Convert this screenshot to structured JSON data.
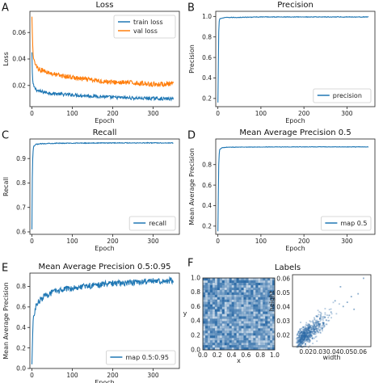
{
  "figure": {
    "width": 474,
    "height": 474
  },
  "chart_data": [
    {
      "panel": "A",
      "type": "line",
      "title": "Loss",
      "xlabel": "Epoch",
      "ylabel": "Loss",
      "xlim": [
        -5,
        365
      ],
      "ylim": [
        0.004,
        0.076
      ],
      "xticks": [
        0,
        100,
        200,
        300
      ],
      "yticks": [
        0.02,
        0.04,
        0.06
      ],
      "ytick_labels": [
        "0.02",
        "0.04",
        "0.06"
      ],
      "legend_loc": "top-right",
      "series": [
        {
          "name": "train loss",
          "color": "#1f77b4",
          "x": [
            0,
            1,
            2,
            3,
            4,
            5,
            7,
            10,
            15,
            20,
            30,
            40,
            50,
            60,
            80,
            100,
            120,
            150,
            180,
            200,
            250,
            300,
            350
          ],
          "y": [
            0.045,
            0.03,
            0.024,
            0.021,
            0.02,
            0.019,
            0.018,
            0.017,
            0.016,
            0.0155,
            0.015,
            0.0145,
            0.014,
            0.0138,
            0.0132,
            0.013,
            0.0125,
            0.012,
            0.0115,
            0.011,
            0.0105,
            0.0102,
            0.0098
          ],
          "noise": 0.0012
        },
        {
          "name": "val loss",
          "color": "#ff7f0e",
          "x": [
            0,
            1,
            2,
            3,
            4,
            5,
            7,
            10,
            15,
            20,
            30,
            40,
            50,
            60,
            80,
            100,
            120,
            150,
            180,
            200,
            250,
            300,
            350
          ],
          "y": [
            0.072,
            0.06,
            0.05,
            0.045,
            0.042,
            0.04,
            0.037,
            0.035,
            0.033,
            0.032,
            0.031,
            0.03,
            0.029,
            0.028,
            0.027,
            0.026,
            0.025,
            0.024,
            0.023,
            0.0225,
            0.022,
            0.021,
            0.021
          ],
          "noise": 0.0018
        }
      ]
    },
    {
      "panel": "B",
      "type": "line",
      "title": "Precision",
      "xlabel": "Epoch",
      "ylabel": "Precision",
      "xlim": [
        -5,
        365
      ],
      "ylim": [
        0.12,
        1.05
      ],
      "xticks": [
        0,
        100,
        200,
        300
      ],
      "yticks": [
        0.2,
        0.4,
        0.6,
        0.8,
        1.0
      ],
      "ytick_labels": [
        "0.2",
        "0.4",
        "0.6",
        "0.8",
        "1.0"
      ],
      "legend_loc": "bottom-right",
      "series": [
        {
          "name": "precision",
          "color": "#1f77b4",
          "x": [
            0,
            1,
            2,
            3,
            4,
            5,
            8,
            10,
            20,
            40,
            100,
            200,
            300,
            350
          ],
          "y": [
            0.16,
            0.5,
            0.85,
            0.95,
            0.97,
            0.98,
            0.98,
            0.985,
            0.99,
            0.99,
            0.995,
            0.995,
            0.995,
            0.995
          ],
          "noise": 0.003
        }
      ]
    },
    {
      "panel": "C",
      "type": "line",
      "title": "Recall",
      "xlabel": "Epoch",
      "ylabel": "Recall",
      "xlim": [
        -5,
        365
      ],
      "ylim": [
        0.59,
        0.98
      ],
      "xticks": [
        0,
        100,
        200,
        300
      ],
      "yticks": [
        0.6,
        0.7,
        0.8,
        0.9
      ],
      "ytick_labels": [
        "0.6",
        "0.7",
        "0.8",
        "0.9"
      ],
      "legend_loc": "bottom-right",
      "series": [
        {
          "name": "recall",
          "color": "#1f77b4",
          "x": [
            0,
            1,
            2,
            3,
            4,
            5,
            8,
            10,
            20,
            40,
            100,
            200,
            300,
            350
          ],
          "y": [
            0.61,
            0.82,
            0.9,
            0.93,
            0.945,
            0.95,
            0.955,
            0.958,
            0.96,
            0.962,
            0.963,
            0.964,
            0.964,
            0.964
          ],
          "noise": 0.0015
        }
      ]
    },
    {
      "panel": "D",
      "type": "line",
      "title": "Mean Average Precision 0.5",
      "xlabel": "Epoch",
      "ylabel": "Mean Average Precision",
      "xlim": [
        -5,
        365
      ],
      "ylim": [
        0.12,
        1.05
      ],
      "xticks": [
        0,
        100,
        200,
        300
      ],
      "yticks": [
        0.2,
        0.4,
        0.6,
        0.8
      ],
      "ytick_labels": [
        "0.2",
        "0.4",
        "0.6",
        "0.8"
      ],
      "legend_loc": "bottom-right",
      "series": [
        {
          "name": "map 0.5",
          "color": "#1f77b4",
          "x": [
            0,
            1,
            2,
            3,
            4,
            5,
            8,
            10,
            20,
            40,
            100,
            200,
            300,
            350
          ],
          "y": [
            0.15,
            0.5,
            0.8,
            0.9,
            0.94,
            0.95,
            0.96,
            0.965,
            0.97,
            0.97,
            0.972,
            0.973,
            0.973,
            0.973
          ],
          "noise": 0.002
        }
      ]
    },
    {
      "panel": "E",
      "type": "line",
      "title": "Mean Average Precision 0.5:0.95",
      "xlabel": "Epoch",
      "ylabel": "Mean Average Precision",
      "xlim": [
        -5,
        365
      ],
      "ylim": [
        0,
        0.93
      ],
      "xticks": [
        0,
        100,
        200,
        300
      ],
      "yticks": [
        0.0,
        0.2,
        0.4,
        0.6,
        0.8
      ],
      "ytick_labels": [
        "0.0",
        "0.2",
        "0.4",
        "0.6",
        "0.8"
      ],
      "legend_loc": "bottom-right",
      "series": [
        {
          "name": "map 0.5:0.95",
          "color": "#1f77b4",
          "x": [
            0,
            1,
            2,
            3,
            5,
            8,
            10,
            15,
            20,
            30,
            40,
            50,
            60,
            80,
            100,
            150,
            200,
            250,
            300,
            350
          ],
          "y": [
            0.04,
            0.2,
            0.35,
            0.45,
            0.52,
            0.58,
            0.6,
            0.64,
            0.67,
            0.7,
            0.72,
            0.74,
            0.75,
            0.77,
            0.79,
            0.81,
            0.83,
            0.84,
            0.85,
            0.86
          ],
          "noise": 0.03
        }
      ]
    },
    {
      "panel": "F",
      "type": "heatmap",
      "title": "Labels",
      "subplots": [
        {
          "kind": "2d-histogram",
          "xlabel": "x",
          "ylabel": "y",
          "xlim": [
            0,
            1
          ],
          "ylim": [
            0,
            1
          ],
          "xticks": [
            0.0,
            0.2,
            0.4,
            0.6,
            0.8,
            1.0
          ],
          "xtick_labels": [
            "0.0",
            "0.2",
            "0.4",
            "0.6",
            "0.8",
            "1.0"
          ],
          "yticks": [
            0.0,
            0.2,
            0.4,
            0.6,
            0.8,
            1.0
          ],
          "ytick_labels": [
            "0.0",
            "0.2",
            "0.4",
            "0.6",
            "0.8",
            "1.0"
          ],
          "color": "#2b6aa6",
          "bins": 30,
          "distribution": "uniform"
        },
        {
          "kind": "2d-histogram",
          "xlabel": "width",
          "ylabel": "height",
          "xlim": [
            0.01,
            0.068
          ],
          "ylim": [
            0.012,
            0.063
          ],
          "xticks": [
            0.02,
            0.03,
            0.04,
            0.05,
            0.06
          ],
          "xtick_labels": [
            "0.02",
            "0.03",
            "0.04",
            "0.05",
            "0.06"
          ],
          "yticks": [
            0.02,
            0.03,
            0.04,
            0.05,
            0.06
          ],
          "ytick_labels": [
            "0.02",
            "0.03",
            "0.04",
            "0.05",
            "0.06"
          ],
          "color": "#2b6aa6",
          "center": [
            0.025,
            0.025
          ],
          "trend": 0.75
        }
      ]
    }
  ]
}
